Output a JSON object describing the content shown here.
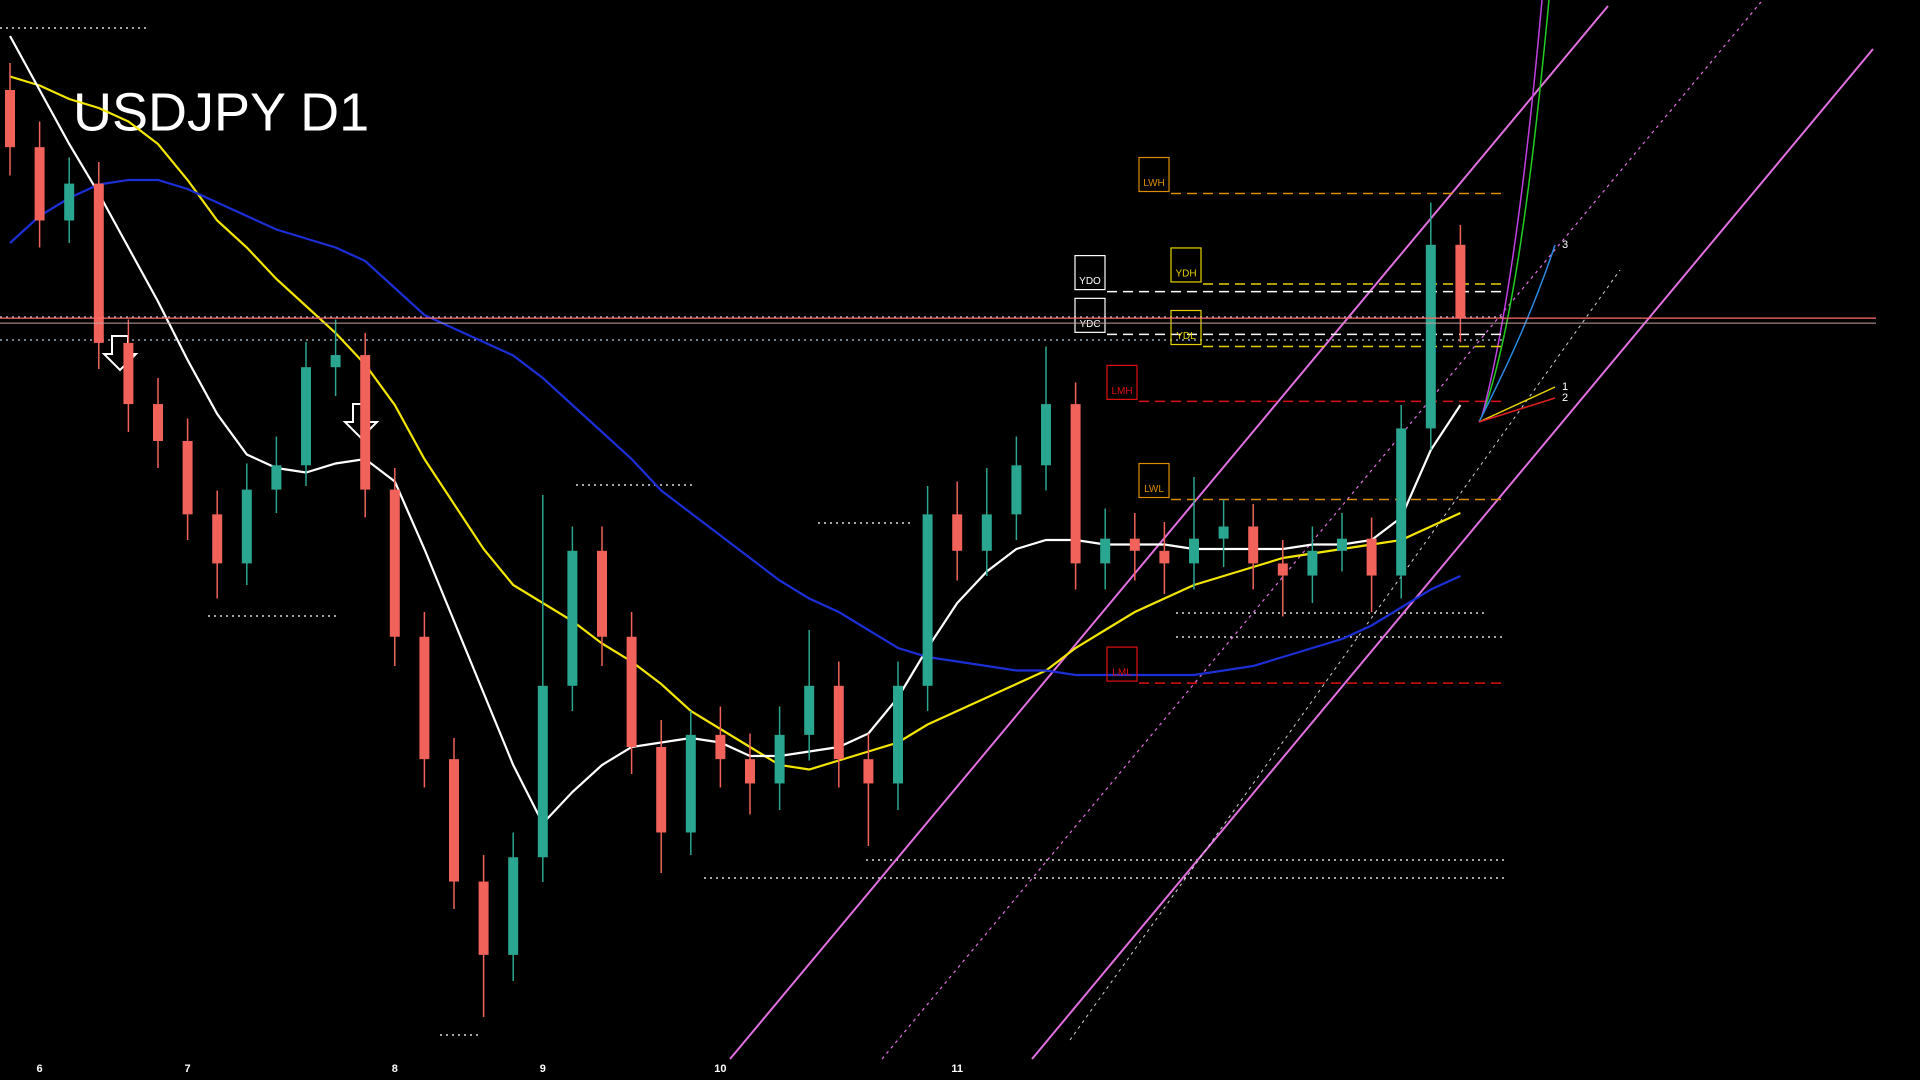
{
  "chart_data": {
    "type": "candlestick",
    "title": "USDJPY D1",
    "categories": [
      null,
      "6",
      null,
      null,
      null,
      null,
      "7",
      null,
      null,
      null,
      null,
      null,
      null,
      "8",
      null,
      null,
      null,
      null,
      "9",
      null,
      null,
      null,
      null,
      null,
      "10",
      null,
      null,
      null,
      null,
      null,
      null,
      null,
      "11",
      null,
      null,
      null,
      null,
      null,
      null,
      null,
      null,
      null,
      null,
      null,
      null,
      null,
      null,
      null,
      null,
      null
    ],
    "open": [
      161.0,
      159.73,
      158.1,
      158.92,
      155.38,
      154.02,
      153.2,
      151.57,
      150.48,
      152.12,
      152.66,
      154.84,
      155.11,
      152.12,
      148.85,
      146.13,
      143.41,
      141.78,
      143.95,
      147.76,
      150.76,
      148.85,
      146.4,
      144.5,
      146.67,
      146.13,
      145.59,
      146.67,
      147.76,
      146.13,
      145.59,
      147.76,
      151.57,
      150.76,
      151.57,
      152.66,
      154.02,
      150.48,
      151.03,
      150.76,
      150.48,
      151.03,
      151.3,
      150.48,
      150.21,
      150.76,
      151.03,
      150.21,
      153.48,
      157.56
    ],
    "high": [
      161.6,
      160.3,
      159.5,
      159.4,
      155.9,
      154.6,
      153.7,
      152.1,
      152.7,
      153.3,
      155.4,
      155.9,
      155.6,
      152.6,
      149.4,
      146.6,
      144.0,
      144.5,
      152.0,
      151.3,
      151.3,
      149.4,
      147.0,
      147.2,
      147.3,
      146.7,
      147.3,
      149.0,
      148.3,
      146.7,
      148.3,
      152.2,
      152.3,
      152.6,
      153.3,
      155.3,
      154.5,
      151.7,
      151.6,
      151.4,
      152.4,
      151.9,
      151.8,
      151.0,
      151.3,
      151.6,
      151.5,
      154.0,
      158.5,
      158.0
    ],
    "low": [
      159.1,
      157.5,
      157.6,
      154.8,
      153.4,
      152.6,
      151.0,
      149.7,
      150.0,
      151.6,
      152.2,
      154.2,
      151.5,
      148.2,
      145.5,
      142.8,
      140.4,
      141.2,
      143.4,
      147.2,
      148.2,
      145.8,
      143.6,
      144.0,
      145.5,
      144.9,
      145.0,
      146.1,
      145.5,
      144.2,
      145.0,
      147.2,
      150.1,
      150.2,
      151.0,
      152.1,
      149.9,
      149.9,
      150.1,
      149.8,
      149.9,
      150.4,
      149.9,
      149.3,
      149.6,
      150.3,
      149.4,
      149.7,
      153.0,
      155.4
    ],
    "close": [
      159.73,
      158.1,
      158.92,
      155.38,
      154.02,
      153.2,
      151.57,
      150.48,
      152.12,
      152.66,
      154.84,
      155.11,
      152.12,
      148.85,
      146.13,
      143.41,
      141.78,
      143.95,
      147.76,
      150.76,
      148.85,
      146.4,
      144.5,
      146.67,
      146.13,
      145.59,
      146.67,
      147.76,
      146.13,
      145.59,
      147.76,
      151.57,
      150.76,
      151.57,
      152.66,
      154.02,
      150.48,
      151.03,
      150.76,
      150.48,
      151.03,
      151.3,
      150.48,
      150.21,
      150.76,
      151.03,
      150.21,
      153.48,
      157.56,
      155.93
    ],
    "up_color": "#2aa58f",
    "down_color": "#f0625a",
    "price_line_color": "#ff6b6b",
    "ylim": [
      139,
      163
    ],
    "overlays": [
      {
        "color": "#f2e600",
        "values": [
          161.3,
          161.1,
          160.8,
          160.6,
          160.3,
          159.8,
          159.0,
          158.1,
          157.5,
          156.8,
          156.2,
          155.6,
          154.9,
          154.0,
          152.8,
          151.8,
          150.8,
          150.0,
          149.6,
          149.2,
          148.7,
          148.3,
          147.8,
          147.2,
          146.8,
          146.4,
          146.0,
          145.9,
          146.1,
          146.3,
          146.5,
          146.9,
          147.2,
          147.5,
          147.8,
          148.1,
          148.6,
          149.0,
          149.4,
          149.7,
          150.0,
          150.2,
          150.4,
          150.6,
          150.7,
          150.8,
          150.9,
          151.0,
          151.3,
          151.6
        ]
      },
      {
        "color": "#ffffff",
        "values": [
          162.2,
          161.0,
          159.8,
          158.7,
          157.5,
          156.3,
          155.0,
          153.8,
          152.9,
          152.6,
          152.5,
          152.7,
          152.8,
          152.3,
          150.8,
          149.2,
          147.6,
          146.0,
          144.7,
          145.4,
          146.0,
          146.4,
          146.5,
          146.6,
          146.5,
          146.2,
          146.2,
          146.3,
          146.4,
          146.7,
          147.5,
          148.6,
          149.6,
          150.3,
          150.8,
          151.0,
          151.0,
          150.9,
          150.9,
          150.9,
          150.8,
          150.8,
          150.8,
          150.8,
          150.9,
          150.9,
          151.0,
          151.5,
          153.0,
          154.0
        ]
      },
      {
        "color": "#1c2fd6",
        "values": [
          157.6,
          158.2,
          158.6,
          158.9,
          159.0,
          159.0,
          158.8,
          158.5,
          158.2,
          157.9,
          157.7,
          157.5,
          157.2,
          156.6,
          156.0,
          155.7,
          155.4,
          155.1,
          154.6,
          154.0,
          153.4,
          152.8,
          152.1,
          151.6,
          151.1,
          150.6,
          150.1,
          149.7,
          149.4,
          149.0,
          148.6,
          148.4,
          148.3,
          148.2,
          148.1,
          148.1,
          148.0,
          148.0,
          148.0,
          148.0,
          148.0,
          148.1,
          148.2,
          148.4,
          148.6,
          148.8,
          149.1,
          149.5,
          149.9,
          150.2
        ]
      }
    ],
    "levels": [
      {
        "label": "LWH",
        "value": 158.7,
        "color": "#d98c00"
      },
      {
        "label": "YDH",
        "value": 156.69,
        "color": "#e6d200"
      },
      {
        "label": "YDO",
        "value": 156.52,
        "color": "#ffffff"
      },
      {
        "label": "YDC",
        "value": 155.57,
        "color": "#ffffff"
      },
      {
        "label": "YDL",
        "value": 155.3,
        "color": "#e6d200"
      },
      {
        "label": "LMH",
        "value": 154.08,
        "color": "#e01010"
      },
      {
        "label": "LWL",
        "value": 151.9,
        "color": "#d98c00"
      },
      {
        "label": "LML",
        "value": 147.82,
        "color": "#e01010"
      }
    ],
    "annotations": [
      "1",
      "2",
      "3"
    ]
  }
}
